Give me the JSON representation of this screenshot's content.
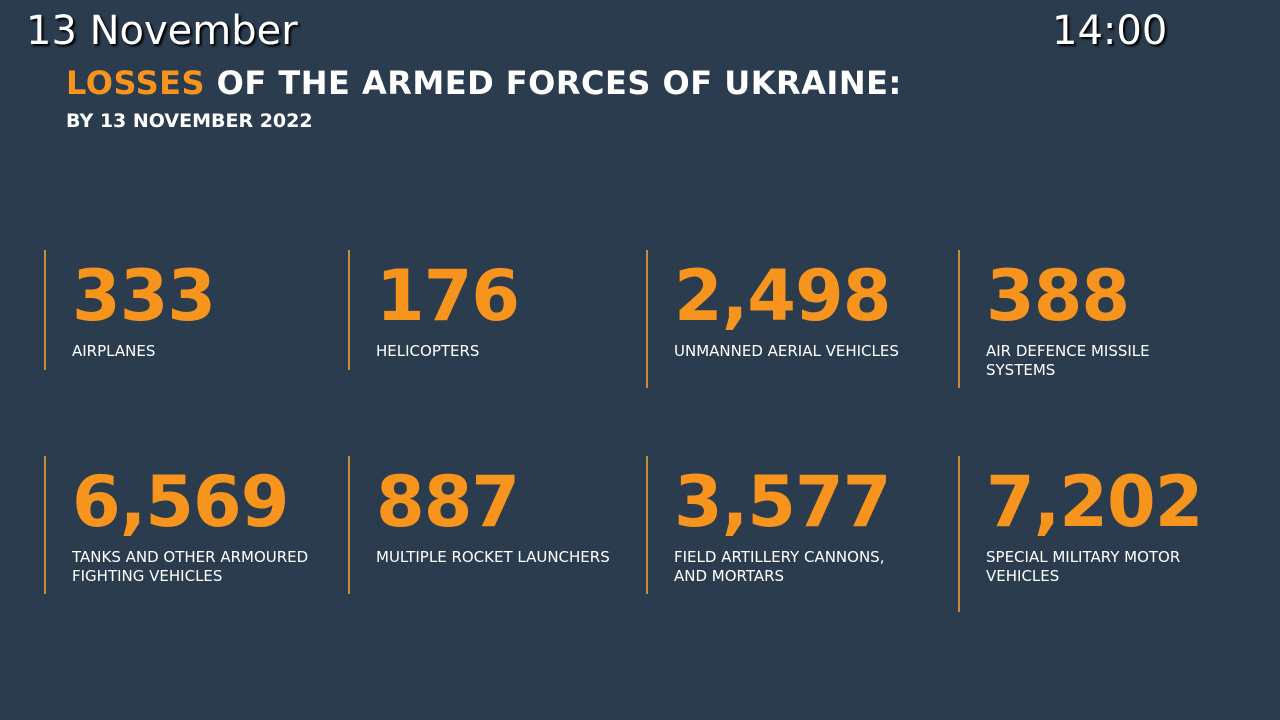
{
  "overlay": {
    "date": "13 November",
    "time": "14:00"
  },
  "header": {
    "title_accent": "LOSSES",
    "title_rest": "OF THE ARMED FORCES OF UKRAINE:",
    "subtitle": "BY 13 NOVEMBER 2022"
  },
  "colors": {
    "background": "#2b3c4e",
    "accent": "#f7941d",
    "text": "#ffffff"
  },
  "stats": [
    {
      "value": "333",
      "label": "AIRPLANES"
    },
    {
      "value": "176",
      "label": "HELICOPTERS"
    },
    {
      "value": "2,498",
      "label": "UNMANNED AERIAL VEHICLES"
    },
    {
      "value": "388",
      "label": "AIR DEFENCE MISSILE SYSTEMS"
    },
    {
      "value": "6,569",
      "label": "TANKS AND OTHER ARMOURED FIGHTING VEHICLES"
    },
    {
      "value": "887",
      "label": "MULTIPLE ROCKET LAUNCHERS"
    },
    {
      "value": "3,577",
      "label": "FIELD ARTILLERY CANNONS, AND MORTARS"
    },
    {
      "value": "7,202",
      "label": "SPECIAL MILITARY MOTOR VEHICLES"
    }
  ]
}
